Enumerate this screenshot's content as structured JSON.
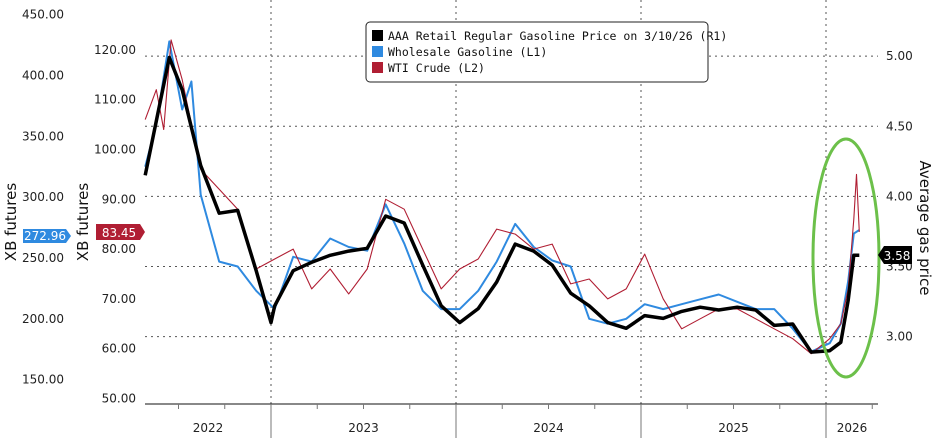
{
  "chart_data": {
    "type": "line",
    "title": "",
    "legend": {
      "placement": "top-center",
      "entries": [
        {
          "label": "AAA Retail Regular Gasoline Price on 3/10/26 (R1)",
          "color": "#000000"
        },
        {
          "label": "Wholesale Gasoline (L1)",
          "color": "#2f8ae0"
        },
        {
          "label": "WTI Crude (L2)",
          "color": "#b01e33"
        }
      ]
    },
    "x_axis": {
      "labels": [
        "2022",
        "2023",
        "2024",
        "2025",
        "2026"
      ],
      "range": [
        2022.32,
        2026.2
      ]
    },
    "y_axes": {
      "L1": {
        "title": "XB futures",
        "ticks": [
          "150.00",
          "200.00",
          "250.00",
          "300.00",
          "350.00",
          "400.00",
          "450.00"
        ],
        "range": [
          130,
          462
        ]
      },
      "L2": {
        "title": "XB futures",
        "ticks": [
          "50.00",
          "60.00",
          "70.00",
          "80.00",
          "90.00",
          "100.00",
          "110.00",
          "120.00"
        ],
        "range": [
          48.9,
          130
        ]
      },
      "R1": {
        "title": "Average gas price",
        "ticks": [
          "3.00",
          "3.50",
          "4.00",
          "4.50",
          "5.00"
        ],
        "range": [
          2.52,
          5.4
        ]
      }
    },
    "last_value_labels": {
      "L1": "272.96",
      "L2": "83.45",
      "R1": "3.58"
    },
    "annotation": "green ellipse highlighting 2026 spike",
    "series": [
      {
        "name": "AAA Retail Regular Gasoline Price",
        "axis": "R1",
        "color": "#000000",
        "points": [
          [
            2022.32,
            4.15
          ],
          [
            2022.45,
            4.99
          ],
          [
            2022.52,
            4.76
          ],
          [
            2022.62,
            4.22
          ],
          [
            2022.72,
            3.88
          ],
          [
            2022.82,
            3.9
          ],
          [
            2022.92,
            3.47
          ],
          [
            2023.0,
            3.1
          ],
          [
            2023.02,
            3.22
          ],
          [
            2023.12,
            3.47
          ],
          [
            2023.22,
            3.53
          ],
          [
            2023.32,
            3.58
          ],
          [
            2023.42,
            3.61
          ],
          [
            2023.52,
            3.63
          ],
          [
            2023.62,
            3.86
          ],
          [
            2023.72,
            3.81
          ],
          [
            2023.82,
            3.51
          ],
          [
            2023.92,
            3.22
          ],
          [
            2024.02,
            3.1
          ],
          [
            2024.12,
            3.2
          ],
          [
            2024.22,
            3.39
          ],
          [
            2024.32,
            3.66
          ],
          [
            2024.42,
            3.61
          ],
          [
            2024.52,
            3.51
          ],
          [
            2024.62,
            3.31
          ],
          [
            2024.72,
            3.22
          ],
          [
            2024.82,
            3.1
          ],
          [
            2024.92,
            3.06
          ],
          [
            2025.02,
            3.15
          ],
          [
            2025.12,
            3.13
          ],
          [
            2025.22,
            3.18
          ],
          [
            2025.32,
            3.21
          ],
          [
            2025.42,
            3.19
          ],
          [
            2025.52,
            3.21
          ],
          [
            2025.62,
            3.19
          ],
          [
            2025.72,
            3.08
          ],
          [
            2025.82,
            3.09
          ],
          [
            2025.92,
            2.89
          ],
          [
            2026.02,
            2.9
          ],
          [
            2026.08,
            2.96
          ],
          [
            2026.12,
            3.26
          ],
          [
            2026.15,
            3.58
          ],
          [
            2026.18,
            3.58
          ]
        ]
      },
      {
        "name": "Wholesale Gasoline",
        "axis": "L1",
        "color": "#2f8ae0",
        "points": [
          [
            2022.32,
            325
          ],
          [
            2022.38,
            360
          ],
          [
            2022.45,
            428
          ],
          [
            2022.52,
            372
          ],
          [
            2022.57,
            395
          ],
          [
            2022.62,
            302
          ],
          [
            2022.72,
            247
          ],
          [
            2022.82,
            243
          ],
          [
            2022.92,
            223
          ],
          [
            2023.02,
            208
          ],
          [
            2023.12,
            251
          ],
          [
            2023.22,
            247
          ],
          [
            2023.32,
            266
          ],
          [
            2023.42,
            259
          ],
          [
            2023.52,
            256
          ],
          [
            2023.62,
            294
          ],
          [
            2023.72,
            262
          ],
          [
            2023.82,
            223
          ],
          [
            2023.92,
            208
          ],
          [
            2024.02,
            208
          ],
          [
            2024.12,
            223
          ],
          [
            2024.22,
            247
          ],
          [
            2024.32,
            278
          ],
          [
            2024.42,
            259
          ],
          [
            2024.52,
            248
          ],
          [
            2024.62,
            243
          ],
          [
            2024.72,
            200
          ],
          [
            2024.82,
            196
          ],
          [
            2024.92,
            200
          ],
          [
            2025.02,
            212
          ],
          [
            2025.12,
            208
          ],
          [
            2025.22,
            212
          ],
          [
            2025.32,
            216
          ],
          [
            2025.42,
            220
          ],
          [
            2025.52,
            214
          ],
          [
            2025.62,
            208
          ],
          [
            2025.72,
            208
          ],
          [
            2025.82,
            192
          ],
          [
            2025.92,
            173
          ],
          [
            2026.02,
            180
          ],
          [
            2026.08,
            196
          ],
          [
            2026.12,
            231
          ],
          [
            2026.15,
            270
          ],
          [
            2026.18,
            272.96
          ]
        ]
      },
      {
        "name": "WTI Crude",
        "axis": "L2",
        "color": "#b01e33",
        "points": [
          [
            2022.32,
            106
          ],
          [
            2022.38,
            112
          ],
          [
            2022.42,
            104
          ],
          [
            2022.46,
            122
          ],
          [
            2022.52,
            114
          ],
          [
            2022.62,
            96
          ],
          [
            2022.72,
            92
          ],
          [
            2022.82,
            88
          ],
          [
            2022.92,
            76
          ],
          [
            2023.02,
            78
          ],
          [
            2023.12,
            80
          ],
          [
            2023.22,
            72
          ],
          [
            2023.32,
            76
          ],
          [
            2023.42,
            71
          ],
          [
            2023.52,
            76
          ],
          [
            2023.62,
            90
          ],
          [
            2023.72,
            88
          ],
          [
            2023.82,
            80
          ],
          [
            2023.92,
            72
          ],
          [
            2024.02,
            76
          ],
          [
            2024.12,
            78
          ],
          [
            2024.22,
            84
          ],
          [
            2024.32,
            83
          ],
          [
            2024.42,
            80
          ],
          [
            2024.52,
            81
          ],
          [
            2024.62,
            73
          ],
          [
            2024.72,
            74
          ],
          [
            2024.82,
            70
          ],
          [
            2024.92,
            72
          ],
          [
            2025.02,
            79
          ],
          [
            2025.12,
            70
          ],
          [
            2025.22,
            64
          ],
          [
            2025.32,
            66
          ],
          [
            2025.42,
            68
          ],
          [
            2025.52,
            68
          ],
          [
            2025.62,
            66
          ],
          [
            2025.72,
            64
          ],
          [
            2025.82,
            62
          ],
          [
            2025.92,
            59
          ],
          [
            2026.02,
            62
          ],
          [
            2026.08,
            65
          ],
          [
            2026.12,
            72
          ],
          [
            2026.15,
            86
          ],
          [
            2026.165,
            95
          ],
          [
            2026.18,
            83.45
          ]
        ]
      }
    ]
  }
}
